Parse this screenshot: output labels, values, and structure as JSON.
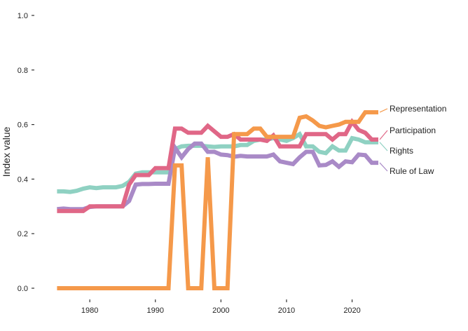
{
  "chart_data": {
    "type": "line",
    "title": "",
    "xlabel": "",
    "ylabel": "Index value",
    "xlim": [
      1974,
      2024
    ],
    "ylim": [
      0,
      1
    ],
    "x_ticks": [
      1980,
      1990,
      2000,
      2010,
      2020
    ],
    "y_ticks": [
      0.0,
      0.2,
      0.4,
      0.6,
      0.8,
      1.0
    ],
    "y_tick_labels": [
      "0.0",
      "0.2",
      "0.4",
      "0.6",
      "0.8",
      "1.0"
    ],
    "grid": false,
    "legend": "direct labels at right end of lines",
    "x": [
      1975,
      1976,
      1977,
      1978,
      1979,
      1980,
      1981,
      1982,
      1983,
      1984,
      1985,
      1986,
      1987,
      1988,
      1989,
      1990,
      1991,
      1992,
      1993,
      1994,
      1995,
      1996,
      1997,
      1998,
      1999,
      2000,
      2001,
      2002,
      2003,
      2004,
      2005,
      2006,
      2007,
      2008,
      2009,
      2010,
      2011,
      2012,
      2013,
      2014,
      2015,
      2016,
      2017,
      2018,
      2019,
      2020,
      2021,
      2022,
      2023,
      2024
    ],
    "series": [
      {
        "name": "Rights",
        "color": "#8fd1c2",
        "values": [
          0.355,
          0.355,
          0.353,
          0.357,
          0.365,
          0.37,
          0.367,
          0.37,
          0.37,
          0.37,
          0.375,
          0.39,
          0.42,
          0.425,
          0.425,
          0.425,
          0.425,
          0.425,
          0.51,
          0.52,
          0.522,
          0.522,
          0.522,
          0.52,
          0.518,
          0.52,
          0.52,
          0.52,
          0.525,
          0.525,
          0.54,
          0.545,
          0.545,
          0.55,
          0.545,
          0.54,
          0.55,
          0.565,
          0.52,
          0.52,
          0.5,
          0.495,
          0.52,
          0.505,
          0.505,
          0.55,
          0.545,
          0.535,
          0.535,
          0.535
        ]
      },
      {
        "name": "Rule of Law",
        "color": "#a98ac7",
        "values": [
          0.29,
          0.292,
          0.29,
          0.29,
          0.29,
          0.298,
          0.3,
          0.3,
          0.3,
          0.3,
          0.3,
          0.32,
          0.38,
          0.382,
          0.382,
          0.383,
          0.383,
          0.383,
          0.515,
          0.48,
          0.51,
          0.53,
          0.53,
          0.5,
          0.5,
          0.49,
          0.488,
          0.482,
          0.485,
          0.483,
          0.483,
          0.483,
          0.483,
          0.49,
          0.465,
          0.46,
          0.455,
          0.48,
          0.5,
          0.5,
          0.45,
          0.452,
          0.465,
          0.445,
          0.465,
          0.462,
          0.49,
          0.488,
          0.46,
          0.46
        ]
      },
      {
        "name": "Participation",
        "color": "#e06787",
        "values": [
          0.283,
          0.283,
          0.283,
          0.283,
          0.283,
          0.3,
          0.3,
          0.3,
          0.3,
          0.3,
          0.3,
          0.38,
          0.415,
          0.415,
          0.415,
          0.44,
          0.44,
          0.44,
          0.585,
          0.585,
          0.57,
          0.57,
          0.57,
          0.595,
          0.575,
          0.555,
          0.555,
          0.565,
          0.545,
          0.545,
          0.545,
          0.545,
          0.54,
          0.56,
          0.52,
          0.52,
          0.52,
          0.52,
          0.565,
          0.565,
          0.565,
          0.565,
          0.545,
          0.565,
          0.565,
          0.61,
          0.58,
          0.57,
          0.545,
          0.545
        ]
      },
      {
        "name": "Representation",
        "color": "#f5994a",
        "values": [
          0,
          0,
          0,
          0,
          0,
          0,
          0,
          0,
          0,
          0,
          0,
          0,
          0,
          0,
          0,
          0,
          0,
          0,
          0.45,
          0.45,
          0,
          0,
          0,
          0.48,
          0,
          0,
          0,
          0.565,
          0.565,
          0.565,
          0.585,
          0.585,
          0.555,
          0.555,
          0.555,
          0.555,
          0.555,
          0.625,
          0.63,
          0.615,
          0.595,
          0.59,
          0.595,
          0.6,
          0.61,
          0.61,
          0.61,
          0.645,
          0.645,
          0.645
        ]
      }
    ]
  }
}
